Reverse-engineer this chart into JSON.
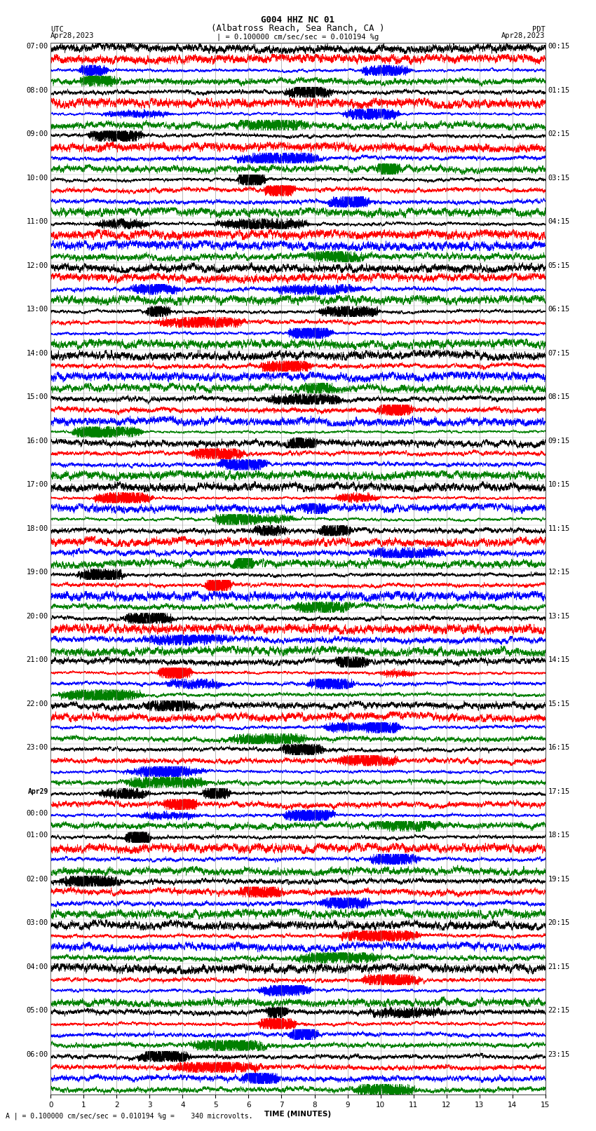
{
  "title_line1": "G004 HHZ NC 01",
  "title_line2": "(Albatross Reach, Sea Ranch, CA )",
  "scale_text": "| = 0.100000 cm/sec/sec = 0.010194 %g",
  "utc_label": "UTC",
  "pdt_label": "PDT",
  "date_left": "Apr28,2023",
  "date_right": "Apr28,2023",
  "xlabel": "TIME (MINUTES)",
  "footer_text": "A | = 0.100000 cm/sec/sec = 0.010194 %g =    340 microvolts.",
  "left_times": [
    "07:00",
    "08:00",
    "09:00",
    "10:00",
    "11:00",
    "12:00",
    "13:00",
    "14:00",
    "15:00",
    "16:00",
    "17:00",
    "18:00",
    "19:00",
    "20:00",
    "21:00",
    "22:00",
    "23:00",
    "Apr29\n00:00",
    "01:00",
    "02:00",
    "03:00",
    "04:00",
    "05:00",
    "06:00"
  ],
  "right_times": [
    "00:15",
    "01:15",
    "02:15",
    "03:15",
    "04:15",
    "05:15",
    "06:15",
    "07:15",
    "08:15",
    "09:15",
    "10:15",
    "11:15",
    "12:15",
    "13:15",
    "14:15",
    "15:15",
    "16:15",
    "17:15",
    "18:15",
    "19:15",
    "20:15",
    "21:15",
    "22:15",
    "23:15"
  ],
  "trace_colors": [
    "black",
    "red",
    "blue",
    "green"
  ],
  "num_rows": 24,
  "traces_per_row": 4,
  "minutes": 15,
  "background_color": "white",
  "plot_bg": "white",
  "title_fontsize": 9,
  "label_fontsize": 7.5,
  "tick_fontsize": 7.5,
  "time_label_fontsize": 7.5,
  "figwidth": 8.5,
  "figheight": 16.13
}
